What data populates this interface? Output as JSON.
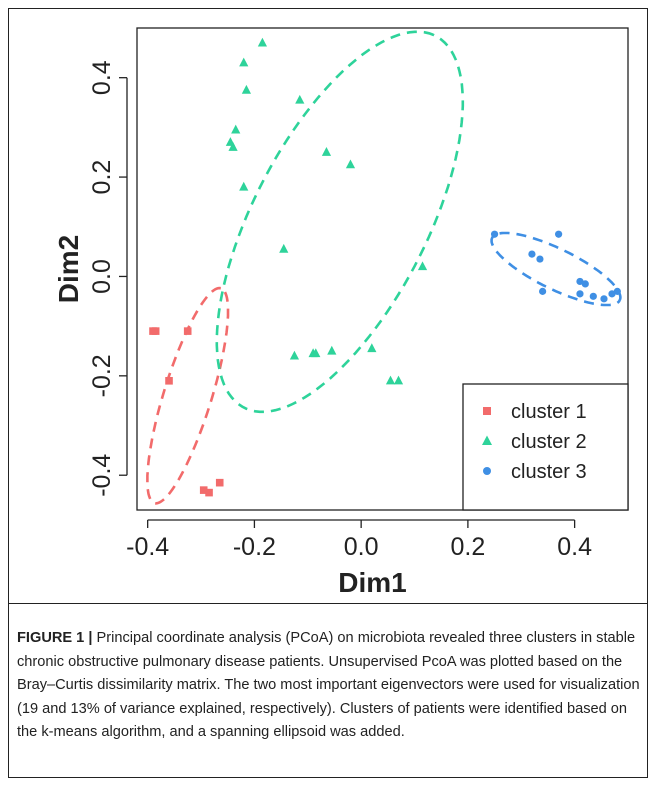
{
  "chart_data": {
    "type": "scatter",
    "xlabel": "Dim1",
    "ylabel": "Dim2",
    "xlim": [
      -0.42,
      0.5
    ],
    "ylim": [
      -0.47,
      0.5
    ],
    "x_ticks": [
      -0.4,
      -0.2,
      0.0,
      0.2,
      0.4
    ],
    "y_ticks": [
      -0.4,
      -0.2,
      0.0,
      0.2,
      0.4
    ],
    "x_tick_labels": [
      "-0.4",
      "-0.2",
      "0.0",
      "0.2",
      "0.4"
    ],
    "y_tick_labels": [
      "-0.4",
      "-0.2",
      "0.0",
      "0.2",
      "0.4"
    ],
    "grid": false,
    "legend_position": "bottom-right",
    "series": [
      {
        "name": "cluster 1",
        "marker": "square",
        "color": "#F26B6B",
        "points": [
          {
            "x": -0.39,
            "y": -0.11
          },
          {
            "x": -0.385,
            "y": -0.11
          },
          {
            "x": -0.325,
            "y": -0.11
          },
          {
            "x": -0.36,
            "y": -0.21
          },
          {
            "x": -0.295,
            "y": -0.43
          },
          {
            "x": -0.285,
            "y": -0.435
          },
          {
            "x": -0.265,
            "y": -0.415
          }
        ],
        "ellipse": {
          "cx": -0.325,
          "cy": -0.24,
          "rx": 0.225,
          "ry": 0.045,
          "angle_deg": 74
        }
      },
      {
        "name": "cluster 2",
        "marker": "triangle",
        "color": "#2ED39A",
        "points": [
          {
            "x": -0.185,
            "y": 0.47
          },
          {
            "x": -0.22,
            "y": 0.43
          },
          {
            "x": -0.215,
            "y": 0.375
          },
          {
            "x": -0.115,
            "y": 0.355
          },
          {
            "x": -0.235,
            "y": 0.295
          },
          {
            "x": -0.245,
            "y": 0.27
          },
          {
            "x": -0.24,
            "y": 0.26
          },
          {
            "x": -0.065,
            "y": 0.25
          },
          {
            "x": -0.02,
            "y": 0.225
          },
          {
            "x": -0.22,
            "y": 0.18
          },
          {
            "x": -0.145,
            "y": 0.055
          },
          {
            "x": 0.115,
            "y": 0.02
          },
          {
            "x": -0.125,
            "y": -0.16
          },
          {
            "x": -0.09,
            "y": -0.155
          },
          {
            "x": -0.085,
            "y": -0.155
          },
          {
            "x": -0.055,
            "y": -0.15
          },
          {
            "x": 0.02,
            "y": -0.145
          },
          {
            "x": 0.055,
            "y": -0.21
          },
          {
            "x": 0.07,
            "y": -0.21
          }
        ],
        "ellipse": {
          "cx": -0.04,
          "cy": 0.11,
          "rx": 0.415,
          "ry": 0.165,
          "angle_deg": 65
        }
      },
      {
        "name": "cluster 3",
        "marker": "circle",
        "color": "#3F8FE4",
        "points": [
          {
            "x": 0.25,
            "y": 0.085
          },
          {
            "x": 0.37,
            "y": 0.085
          },
          {
            "x": 0.32,
            "y": 0.045
          },
          {
            "x": 0.335,
            "y": 0.035
          },
          {
            "x": 0.41,
            "y": -0.01
          },
          {
            "x": 0.42,
            "y": -0.015
          },
          {
            "x": 0.34,
            "y": -0.03
          },
          {
            "x": 0.41,
            "y": -0.035
          },
          {
            "x": 0.435,
            "y": -0.04
          },
          {
            "x": 0.455,
            "y": -0.045
          },
          {
            "x": 0.47,
            "y": -0.035
          },
          {
            "x": 0.48,
            "y": -0.03
          }
        ],
        "ellipse": {
          "cx": 0.365,
          "cy": 0.015,
          "rx": 0.135,
          "ry": 0.04,
          "angle_deg": -28
        }
      }
    ]
  },
  "caption": {
    "label": "FIGURE 1 |",
    "text": " Principal coordinate analysis (PCoA) on microbiota revealed three clusters in stable chronic obstructive pulmonary disease patients. Unsupervised PcoA was plotted based on the Bray–Curtis dissimilarity matrix. The two most important eigenvectors were used for visualization (19 and 13% of variance explained, respectively). Clusters of patients were identified based on the k-means algorithm, and a spanning ellipsoid was added."
  }
}
